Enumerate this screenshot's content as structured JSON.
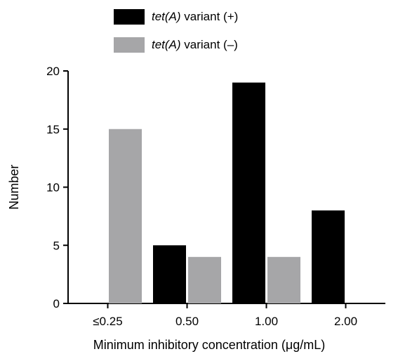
{
  "colors": {
    "positive": "#000000",
    "negative": "#a6a6a8",
    "axis": "#000000"
  },
  "legend": {
    "items": [
      {
        "italic": "tet(A)",
        "rest": " variant (+)"
      },
      {
        "italic": "tet(A)",
        "rest": " variant (–)"
      }
    ]
  },
  "chart_data": {
    "type": "bar",
    "categories": [
      "≤0.25",
      "0.50",
      "1.00",
      "2.00"
    ],
    "series": [
      {
        "name": "tet(A) variant (+)",
        "values": [
          0,
          5,
          19,
          8
        ]
      },
      {
        "name": "tet(A) variant (–)",
        "values": [
          15,
          4,
          4,
          0
        ]
      }
    ],
    "xlabel": "Minimum inhibitory concentration (μg/mL)",
    "ylabel": "Number",
    "ylim": [
      0,
      20
    ],
    "yticks": [
      "0",
      "5",
      "10",
      "15",
      "20"
    ],
    "grid": false,
    "legend_position": "top-center"
  }
}
